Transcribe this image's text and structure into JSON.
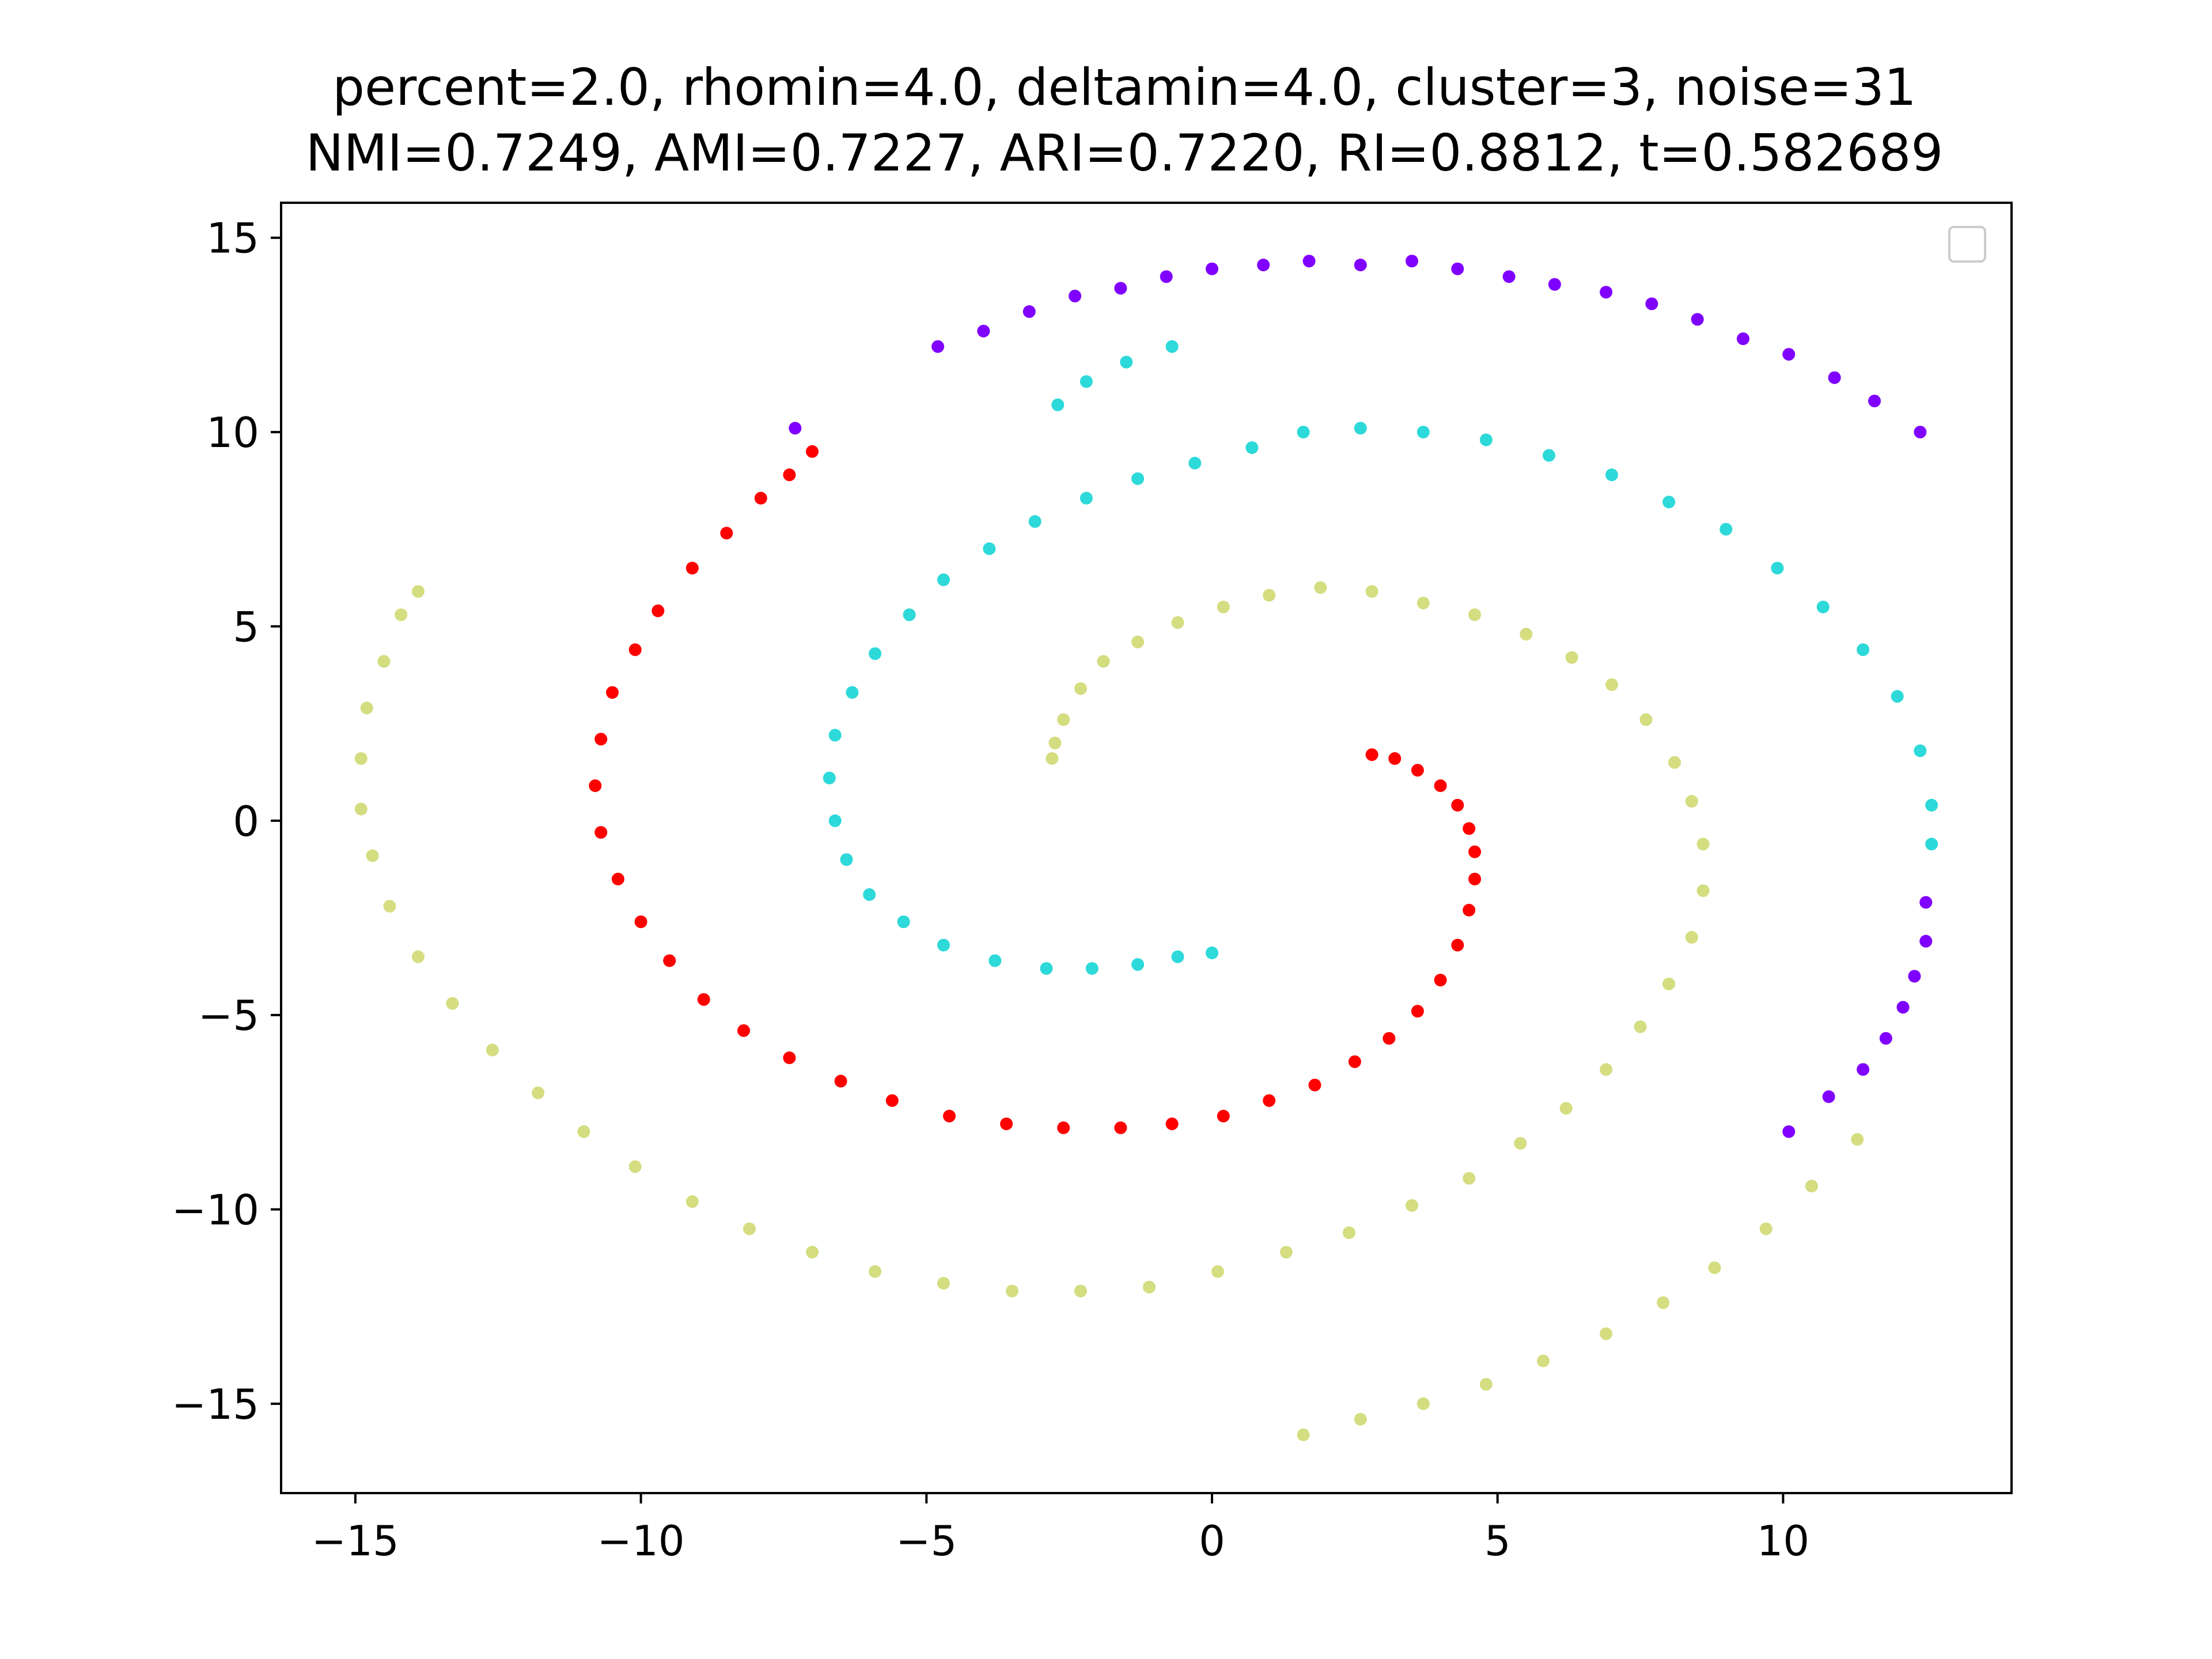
{
  "chart_data": {
    "type": "scatter",
    "title": [
      "percent=2.0, rhomin=4.0, deltamin=4.0, cluster=3, noise=31",
      "NMI=0.7249, AMI=0.7227, ARI=0.7220, RI=0.8812, t=0.582689"
    ],
    "xlabel": "",
    "ylabel": "",
    "xlim": [
      -16.3,
      14.0
    ],
    "ylim": [
      -17.3,
      15.9
    ],
    "xticks": [
      -15,
      -10,
      -5,
      0,
      5,
      10
    ],
    "yticks": [
      -15,
      -10,
      -5,
      0,
      5,
      10,
      15
    ],
    "xtick_labels": [
      "−15",
      "−10",
      "−5",
      "0",
      "5",
      "10"
    ],
    "ytick_labels": [
      "−15",
      "−10",
      "−5",
      "0",
      "5",
      "10",
      "15"
    ],
    "grid": false,
    "legend": {
      "placement": "top-right",
      "entries": []
    },
    "series": [
      {
        "color": "#d4dd80",
        "points": [
          [
            -2.8,
            1.6
          ],
          [
            -2.75,
            2.0
          ],
          [
            -2.6,
            2.6
          ],
          [
            -2.3,
            3.4
          ],
          [
            -1.9,
            4.1
          ],
          [
            -1.3,
            4.6
          ],
          [
            -0.6,
            5.1
          ],
          [
            0.2,
            5.5
          ],
          [
            1.0,
            5.8
          ],
          [
            1.9,
            6.0
          ],
          [
            2.8,
            5.9
          ],
          [
            3.7,
            5.6
          ],
          [
            4.6,
            5.3
          ],
          [
            5.5,
            4.8
          ],
          [
            6.3,
            4.2
          ],
          [
            7.0,
            3.5
          ],
          [
            7.6,
            2.6
          ],
          [
            8.1,
            1.5
          ],
          [
            8.4,
            0.5
          ],
          [
            8.6,
            -0.6
          ],
          [
            8.6,
            -1.8
          ],
          [
            8.4,
            -3.0
          ],
          [
            8.0,
            -4.2
          ],
          [
            7.5,
            -5.3
          ],
          [
            6.9,
            -6.4
          ],
          [
            6.2,
            -7.4
          ],
          [
            5.4,
            -8.3
          ],
          [
            4.5,
            -9.2
          ],
          [
            3.5,
            -9.9
          ],
          [
            2.4,
            -10.6
          ],
          [
            1.3,
            -11.1
          ],
          [
            0.1,
            -11.6
          ],
          [
            -1.1,
            -12.0
          ],
          [
            -2.3,
            -12.1
          ],
          [
            -3.5,
            -12.1
          ],
          [
            -4.7,
            -11.9
          ],
          [
            -5.9,
            -11.6
          ],
          [
            -7.0,
            -11.1
          ],
          [
            -8.1,
            -10.5
          ],
          [
            -9.1,
            -9.8
          ],
          [
            -10.1,
            -8.9
          ],
          [
            -11.0,
            -8.0
          ],
          [
            -11.8,
            -7.0
          ],
          [
            -12.6,
            -5.9
          ],
          [
            -13.3,
            -4.7
          ],
          [
            -13.9,
            -3.5
          ],
          [
            -14.4,
            -2.2
          ],
          [
            -14.7,
            -0.9
          ],
          [
            -14.9,
            0.3
          ],
          [
            -14.9,
            1.6
          ],
          [
            -14.8,
            2.9
          ],
          [
            -14.5,
            4.1
          ],
          [
            -14.2,
            5.3
          ],
          [
            -13.9,
            5.9
          ],
          [
            1.6,
            -15.8
          ],
          [
            2.6,
            -15.4
          ],
          [
            3.7,
            -15.0
          ],
          [
            4.8,
            -14.5
          ],
          [
            5.8,
            -13.9
          ],
          [
            6.9,
            -13.2
          ],
          [
            7.9,
            -12.4
          ],
          [
            8.8,
            -11.5
          ],
          [
            9.7,
            -10.5
          ],
          [
            10.5,
            -9.4
          ],
          [
            11.3,
            -8.2
          ]
        ]
      },
      {
        "color": "#ff0000",
        "points": [
          [
            2.8,
            1.7
          ],
          [
            3.2,
            1.6
          ],
          [
            3.6,
            1.3
          ],
          [
            4.0,
            0.9
          ],
          [
            4.3,
            0.4
          ],
          [
            4.5,
            -0.2
          ],
          [
            4.6,
            -0.8
          ],
          [
            4.6,
            -1.5
          ],
          [
            4.5,
            -2.3
          ],
          [
            4.3,
            -3.2
          ],
          [
            4.0,
            -4.1
          ],
          [
            3.6,
            -4.9
          ],
          [
            3.1,
            -5.6
          ],
          [
            2.5,
            -6.2
          ],
          [
            1.8,
            -6.8
          ],
          [
            1.0,
            -7.2
          ],
          [
            0.2,
            -7.6
          ],
          [
            -0.7,
            -7.8
          ],
          [
            -1.6,
            -7.9
          ],
          [
            -2.6,
            -7.9
          ],
          [
            -3.6,
            -7.8
          ],
          [
            -4.6,
            -7.6
          ],
          [
            -5.6,
            -7.2
          ],
          [
            -6.5,
            -6.7
          ],
          [
            -7.4,
            -6.1
          ],
          [
            -8.2,
            -5.4
          ],
          [
            -8.9,
            -4.6
          ],
          [
            -9.5,
            -3.6
          ],
          [
            -10.0,
            -2.6
          ],
          [
            -10.4,
            -1.5
          ],
          [
            -10.7,
            -0.3
          ],
          [
            -10.8,
            0.9
          ],
          [
            -10.7,
            2.1
          ],
          [
            -10.5,
            3.3
          ],
          [
            -10.1,
            4.4
          ],
          [
            -9.7,
            5.4
          ],
          [
            -9.1,
            6.5
          ],
          [
            -8.5,
            7.4
          ],
          [
            -7.9,
            8.3
          ],
          [
            -7.4,
            8.9
          ],
          [
            -7.0,
            9.5
          ]
        ]
      },
      {
        "color": "#2dd9d9",
        "points": [
          [
            0.0,
            -3.4
          ],
          [
            -0.6,
            -3.5
          ],
          [
            -1.3,
            -3.7
          ],
          [
            -2.1,
            -3.8
          ],
          [
            -2.9,
            -3.8
          ],
          [
            -3.8,
            -3.6
          ],
          [
            -4.7,
            -3.2
          ],
          [
            -5.4,
            -2.6
          ],
          [
            -6.0,
            -1.9
          ],
          [
            -6.4,
            -1.0
          ],
          [
            -6.6,
            0.0
          ],
          [
            -6.7,
            1.1
          ],
          [
            -6.6,
            2.2
          ],
          [
            -6.3,
            3.3
          ],
          [
            -5.9,
            4.3
          ],
          [
            -5.3,
            5.3
          ],
          [
            -4.7,
            6.2
          ],
          [
            -3.9,
            7.0
          ],
          [
            -3.1,
            7.7
          ],
          [
            -2.2,
            8.3
          ],
          [
            -1.3,
            8.8
          ],
          [
            -0.3,
            9.2
          ],
          [
            0.7,
            9.6
          ],
          [
            1.6,
            10.0
          ],
          [
            2.6,
            10.1
          ],
          [
            3.7,
            10.0
          ],
          [
            4.8,
            9.8
          ],
          [
            5.9,
            9.4
          ],
          [
            7.0,
            8.9
          ],
          [
            8.0,
            8.2
          ],
          [
            9.0,
            7.5
          ],
          [
            9.9,
            6.5
          ],
          [
            10.7,
            5.5
          ],
          [
            11.4,
            4.4
          ],
          [
            12.0,
            3.2
          ],
          [
            12.4,
            1.8
          ],
          [
            12.6,
            0.4
          ],
          [
            12.6,
            -0.6
          ],
          [
            -2.7,
            10.7
          ],
          [
            -2.2,
            11.3
          ],
          [
            -1.5,
            11.8
          ],
          [
            -0.7,
            12.2
          ]
        ]
      },
      {
        "color": "#8000ff",
        "points": [
          [
            -7.3,
            10.1
          ],
          [
            -4.8,
            12.2
          ],
          [
            -4.0,
            12.6
          ],
          [
            -3.2,
            13.1
          ],
          [
            -2.4,
            13.5
          ],
          [
            -1.6,
            13.7
          ],
          [
            -0.8,
            14.0
          ],
          [
            0.0,
            14.2
          ],
          [
            0.9,
            14.3
          ],
          [
            1.7,
            14.4
          ],
          [
            2.6,
            14.3
          ],
          [
            3.5,
            14.4
          ],
          [
            4.3,
            14.2
          ],
          [
            5.2,
            14.0
          ],
          [
            6.0,
            13.8
          ],
          [
            6.9,
            13.6
          ],
          [
            7.7,
            13.3
          ],
          [
            8.5,
            12.9
          ],
          [
            9.3,
            12.4
          ],
          [
            10.1,
            12.0
          ],
          [
            10.9,
            11.4
          ],
          [
            11.6,
            10.8
          ],
          [
            12.4,
            10.0
          ],
          [
            12.5,
            -2.1
          ],
          [
            12.5,
            -3.1
          ],
          [
            12.3,
            -4.0
          ],
          [
            12.1,
            -4.8
          ],
          [
            11.8,
            -5.6
          ],
          [
            11.4,
            -6.4
          ],
          [
            10.8,
            -7.1
          ],
          [
            10.1,
            -8.0
          ]
        ]
      }
    ]
  }
}
